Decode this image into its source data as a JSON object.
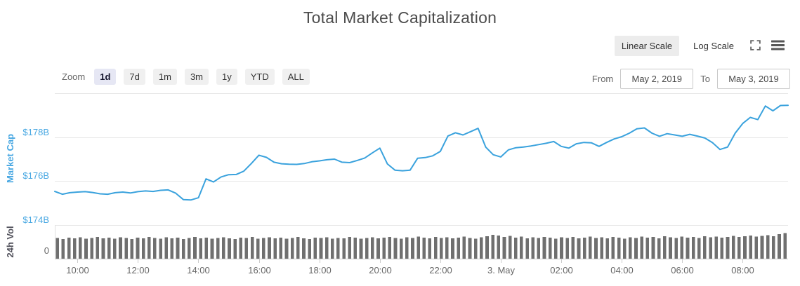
{
  "header": {
    "title": "Total Market Capitalization"
  },
  "scale_toggle": {
    "linear_label": "Linear Scale",
    "log_label": "Log Scale",
    "selected": "Linear Scale",
    "selected_bg": "#ececec"
  },
  "icons": {
    "expand": "expand-arrows-icon",
    "menu": "hamburger-menu-icon",
    "color": "#666666"
  },
  "range_controls": {
    "zoom_label": "Zoom",
    "buttons": [
      {
        "label": "1d",
        "selected": true
      },
      {
        "label": "7d",
        "selected": false
      },
      {
        "label": "1m",
        "selected": false
      },
      {
        "label": "3m",
        "selected": false
      },
      {
        "label": "1y",
        "selected": false
      },
      {
        "label": "YTD",
        "selected": false
      },
      {
        "label": "ALL",
        "selected": false
      }
    ],
    "from_label": "From",
    "from_value": "May 2, 2019",
    "to_label": "To",
    "to_value": "May 3, 2019"
  },
  "chart_data": {
    "type": "line",
    "title": "Total Market Capitalization",
    "unit": "USD billions",
    "start_time": "May 2, 2019 09:15",
    "end_time": "May 3, 2019 09:30",
    "interval_minutes": 15,
    "y_axis": {
      "title": "Market Cap",
      "tick_labels": [
        "$178B",
        "$176B",
        "$174B"
      ],
      "tick_values": [
        178,
        176,
        174
      ],
      "range": [
        174,
        180
      ],
      "unlabeled_top_gridline_value": 180,
      "label_color": "#47a7e2",
      "grid": true
    },
    "x_axis": {
      "labels": [
        {
          "text": "10:00",
          "hours_from_start": 0.75
        },
        {
          "text": "12:00",
          "hours_from_start": 2.75
        },
        {
          "text": "14:00",
          "hours_from_start": 4.75
        },
        {
          "text": "16:00",
          "hours_from_start": 6.75
        },
        {
          "text": "18:00",
          "hours_from_start": 8.75
        },
        {
          "text": "20:00",
          "hours_from_start": 10.75
        },
        {
          "text": "22:00",
          "hours_from_start": 12.75
        },
        {
          "text": "3. May",
          "hours_from_start": 14.75
        },
        {
          "text": "02:00",
          "hours_from_start": 16.75
        },
        {
          "text": "04:00",
          "hours_from_start": 18.75
        },
        {
          "text": "06:00",
          "hours_from_start": 20.75
        },
        {
          "text": "08:00",
          "hours_from_start": 22.75
        }
      ],
      "label_color": "#666666"
    },
    "series": [
      {
        "name": "Market Cap",
        "type": "line",
        "color": "#3aa2dd",
        "values_usd_billion": [
          175.53,
          175.4,
          175.47,
          175.5,
          175.52,
          175.48,
          175.42,
          175.4,
          175.47,
          175.5,
          175.46,
          175.52,
          175.55,
          175.53,
          175.58,
          175.6,
          175.45,
          175.16,
          175.14,
          175.24,
          176.1,
          175.96,
          176.19,
          176.29,
          176.3,
          176.45,
          176.8,
          177.18,
          177.08,
          176.86,
          176.79,
          176.77,
          176.76,
          176.8,
          176.88,
          176.92,
          176.97,
          177.0,
          176.86,
          176.84,
          176.94,
          177.05,
          177.28,
          177.5,
          176.78,
          176.5,
          176.47,
          176.5,
          177.04,
          177.07,
          177.15,
          177.35,
          178.05,
          178.2,
          178.1,
          178.25,
          178.4,
          177.55,
          177.2,
          177.1,
          177.42,
          177.52,
          177.55,
          177.6,
          177.66,
          177.72,
          177.8,
          177.58,
          177.5,
          177.7,
          177.76,
          177.74,
          177.58,
          177.76,
          177.92,
          178.02,
          178.18,
          178.38,
          178.42,
          178.18,
          178.04,
          178.16,
          178.1,
          178.04,
          178.13,
          178.05,
          177.96,
          177.75,
          177.44,
          177.55,
          178.18,
          178.62,
          178.9,
          178.8,
          179.42,
          179.2,
          179.44,
          179.45
        ]
      }
    ],
    "volume_pane": {
      "title": "24h Vol",
      "tick_labels": [
        "0"
      ],
      "bar_color": "#6f6f6f",
      "note": "bar heights are relative to volume pane height; axis shows only 0",
      "relative_heights": [
        0.63,
        0.6,
        0.64,
        0.62,
        0.65,
        0.61,
        0.63,
        0.66,
        0.62,
        0.64,
        0.61,
        0.65,
        0.63,
        0.6,
        0.64,
        0.62,
        0.66,
        0.63,
        0.61,
        0.65,
        0.62,
        0.64,
        0.6,
        0.63,
        0.66,
        0.62,
        0.64,
        0.61,
        0.63,
        0.65,
        0.62,
        0.6,
        0.64,
        0.63,
        0.66,
        0.61,
        0.63,
        0.65,
        0.62,
        0.64,
        0.61,
        0.63,
        0.66,
        0.62,
        0.6,
        0.64,
        0.63,
        0.65,
        0.61,
        0.63,
        0.62,
        0.66,
        0.64,
        0.61,
        0.63,
        0.65,
        0.62,
        0.64,
        0.66,
        0.63,
        0.61,
        0.65,
        0.63,
        0.67,
        0.64,
        0.62,
        0.66,
        0.63,
        0.65,
        0.62,
        0.64,
        0.67,
        0.63,
        0.61,
        0.65,
        0.68,
        0.72,
        0.7,
        0.66,
        0.69,
        0.64,
        0.67,
        0.62,
        0.65,
        0.63,
        0.66,
        0.64,
        0.61,
        0.65,
        0.63,
        0.66,
        0.62,
        0.64,
        0.67,
        0.63,
        0.65,
        0.62,
        0.66,
        0.64,
        0.61,
        0.65,
        0.63,
        0.67,
        0.64,
        0.66,
        0.62,
        0.68,
        0.65,
        0.63,
        0.67,
        0.64,
        0.66,
        0.63,
        0.68,
        0.65,
        0.67,
        0.64,
        0.66,
        0.69,
        0.66,
        0.68,
        0.7,
        0.67,
        0.69,
        0.71,
        0.68,
        0.74,
        0.78
      ]
    },
    "legend": "none",
    "grid_color": "#e6e6e6"
  }
}
